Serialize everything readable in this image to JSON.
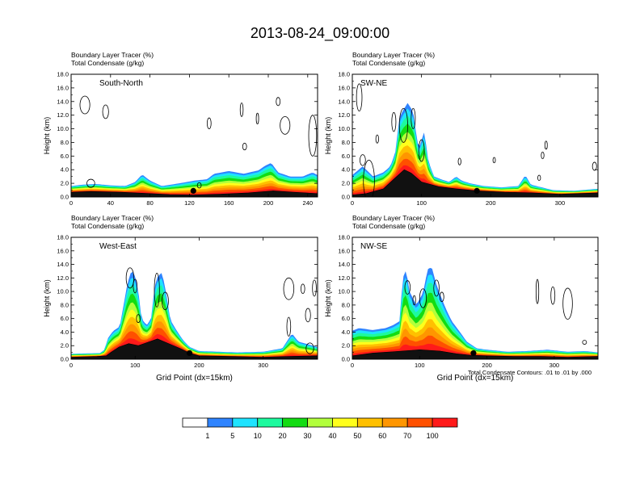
{
  "title": "2013-08-24_09:00:00",
  "footnote": "Total Condensate Contours: .01 to .01 by .000",
  "chart_data": [
    {
      "type": "heatmap",
      "subtitle_line1": "Boundary Layer Tracer   (%)",
      "subtitle_line2": "Total Condensate   (g/kg)",
      "panel_label": "South-North",
      "xlabel": "",
      "ylabel": "Height (km)",
      "xlim": [
        0,
        250
      ],
      "ylim": [
        0,
        18
      ],
      "x_ticks": [
        "0",
        "40",
        "80",
        "120",
        "160",
        "200",
        "240"
      ],
      "y_ticks": [
        "0.0",
        "2.0",
        "4.0",
        "6.0",
        "8.0",
        "10.0",
        "12.0",
        "14.0",
        "16.0",
        "18.0"
      ],
      "terrain": [
        [
          0,
          0.7
        ],
        [
          20,
          0.8
        ],
        [
          50,
          0.7
        ],
        [
          80,
          0.5
        ],
        [
          100,
          0.35
        ],
        [
          124,
          0.3
        ],
        [
          150,
          0.4
        ],
        [
          180,
          0.6
        ],
        [
          205,
          0.9
        ],
        [
          225,
          0.7
        ],
        [
          250,
          0.5
        ]
      ],
      "plume_top": [
        [
          0,
          1.6
        ],
        [
          12,
          1.8
        ],
        [
          25,
          1.9
        ],
        [
          40,
          1.7
        ],
        [
          55,
          1.6
        ],
        [
          65,
          2.2
        ],
        [
          72,
          3.3
        ],
        [
          80,
          2.4
        ],
        [
          92,
          1.6
        ],
        [
          110,
          2.0
        ],
        [
          125,
          2.4
        ],
        [
          138,
          2.6
        ],
        [
          145,
          3.4
        ],
        [
          160,
          3.8
        ],
        [
          175,
          3.4
        ],
        [
          190,
          3.9
        ],
        [
          197,
          4.6
        ],
        [
          203,
          5.0
        ],
        [
          210,
          3.6
        ],
        [
          222,
          3.0
        ],
        [
          235,
          3.0
        ],
        [
          245,
          3.6
        ],
        [
          250,
          3.2
        ]
      ],
      "condensate_blobs": [
        [
          14,
          13.5,
          5,
          1.3
        ],
        [
          35,
          12.5,
          3,
          1.0
        ],
        [
          140,
          10.8,
          2,
          0.8
        ],
        [
          173,
          12.8,
          1.5,
          1.0
        ],
        [
          189,
          11.5,
          1.2,
          0.8
        ],
        [
          176,
          7.4,
          2,
          0.5
        ],
        [
          210,
          14.0,
          2,
          0.6
        ],
        [
          217,
          10.5,
          5,
          1.3
        ],
        [
          245,
          9.0,
          4,
          3.0
        ],
        [
          20,
          2.0,
          4,
          0.6
        ],
        [
          130,
          1.7,
          2,
          0.4
        ]
      ],
      "site_marker": {
        "x": 124,
        "y": 0.9
      }
    },
    {
      "type": "heatmap",
      "subtitle_line1": "Boundary Layer Tracer   (%)",
      "subtitle_line2": "Total Condensate   (g/kg)",
      "panel_label": "SW-NE",
      "xlabel": "",
      "ylabel": "Height (km)",
      "xlim": [
        0,
        355
      ],
      "ylim": [
        0,
        18
      ],
      "x_ticks": [
        "0",
        "100",
        "200",
        "300"
      ],
      "y_ticks": [
        "0.0",
        "2.0",
        "4.0",
        "6.0",
        "8.0",
        "10.0",
        "12.0",
        "14.0",
        "16.0",
        "18.0"
      ],
      "terrain": [
        [
          0,
          0.3
        ],
        [
          20,
          0.5
        ],
        [
          45,
          1.2
        ],
        [
          62,
          2.8
        ],
        [
          75,
          4.0
        ],
        [
          85,
          3.5
        ],
        [
          100,
          2.2
        ],
        [
          125,
          1.5
        ],
        [
          150,
          1.2
        ],
        [
          180,
          0.9
        ],
        [
          220,
          0.7
        ],
        [
          260,
          0.6
        ],
        [
          300,
          0.4
        ],
        [
          355,
          0.6
        ]
      ],
      "plume_top": [
        [
          0,
          3.2
        ],
        [
          15,
          4.5
        ],
        [
          30,
          3.0
        ],
        [
          45,
          3.6
        ],
        [
          55,
          4.5
        ],
        [
          62,
          6.5
        ],
        [
          68,
          11.5
        ],
        [
          72,
          12.5
        ],
        [
          80,
          13.8
        ],
        [
          88,
          12.5
        ],
        [
          92,
          9.5
        ],
        [
          96,
          7.0
        ],
        [
          104,
          9.6
        ],
        [
          110,
          5.2
        ],
        [
          118,
          3.0
        ],
        [
          128,
          2.6
        ],
        [
          140,
          2.2
        ],
        [
          150,
          3.0
        ],
        [
          158,
          2.4
        ],
        [
          170,
          2.0
        ],
        [
          190,
          1.6
        ],
        [
          215,
          1.4
        ],
        [
          240,
          1.6
        ],
        [
          250,
          3.2
        ],
        [
          258,
          1.8
        ],
        [
          290,
          1.0
        ],
        [
          320,
          0.9
        ],
        [
          355,
          1.2
        ]
      ],
      "condensate_blobs": [
        [
          10,
          14.6,
          4,
          2.0
        ],
        [
          24,
          2.4,
          8,
          3.0
        ],
        [
          15,
          5.4,
          4,
          0.8
        ],
        [
          60,
          11.0,
          3,
          1.4
        ],
        [
          74,
          10.5,
          6,
          2.5
        ],
        [
          88,
          11.5,
          3,
          1.5
        ],
        [
          100,
          6.8,
          4,
          1.6
        ],
        [
          36,
          8.5,
          2,
          0.6
        ],
        [
          280,
          7.6,
          1.5,
          0.6
        ],
        [
          275,
          6.1,
          2,
          0.5
        ],
        [
          205,
          5.4,
          1,
          0.4
        ],
        [
          155,
          5.2,
          2,
          0.5
        ],
        [
          270,
          2.8,
          2,
          0.4
        ],
        [
          350,
          4.5,
          3,
          0.6
        ]
      ],
      "site_marker": {
        "x": 180,
        "y": 0.9
      }
    },
    {
      "type": "heatmap",
      "subtitle_line1": "Boundary Layer Tracer   (%)",
      "subtitle_line2": "Total Condensate   (g/kg)",
      "panel_label": "West-East",
      "xlabel": "Grid Point (dx=15km)",
      "ylabel": "Height (km)",
      "xlim": [
        0,
        385
      ],
      "ylim": [
        0,
        18
      ],
      "x_ticks": [
        "0",
        "100",
        "200",
        "300"
      ],
      "y_ticks": [
        "0.0",
        "2.0",
        "4.0",
        "6.0",
        "8.0",
        "10.0",
        "12.0",
        "14.0",
        "16.0",
        "18.0"
      ],
      "terrain": [
        [
          0,
          0.3
        ],
        [
          40,
          0.4
        ],
        [
          55,
          0.5
        ],
        [
          62,
          1.0
        ],
        [
          75,
          1.8
        ],
        [
          90,
          2.3
        ],
        [
          105,
          2.0
        ],
        [
          120,
          2.5
        ],
        [
          135,
          3.0
        ],
        [
          150,
          2.4
        ],
        [
          170,
          1.6
        ],
        [
          185,
          0.9
        ],
        [
          200,
          0.5
        ],
        [
          250,
          0.4
        ],
        [
          300,
          0.3
        ],
        [
          340,
          0.4
        ],
        [
          385,
          0.5
        ]
      ],
      "plume_top": [
        [
          0,
          0.8
        ],
        [
          45,
          0.9
        ],
        [
          52,
          1.4
        ],
        [
          58,
          3.2
        ],
        [
          66,
          4.2
        ],
        [
          76,
          4.8
        ],
        [
          88,
          11.2
        ],
        [
          94,
          13.0
        ],
        [
          98,
          12.8
        ],
        [
          104,
          10.8
        ],
        [
          110,
          6.0
        ],
        [
          118,
          5.0
        ],
        [
          125,
          6.0
        ],
        [
          130,
          10.5
        ],
        [
          135,
          12.2
        ],
        [
          142,
          12.8
        ],
        [
          148,
          10.0
        ],
        [
          155,
          5.8
        ],
        [
          165,
          4.2
        ],
        [
          175,
          2.8
        ],
        [
          185,
          1.8
        ],
        [
          200,
          1.2
        ],
        [
          230,
          1.1
        ],
        [
          260,
          1.0
        ],
        [
          300,
          1.1
        ],
        [
          330,
          1.6
        ],
        [
          345,
          3.8
        ],
        [
          355,
          2.6
        ],
        [
          370,
          2.2
        ],
        [
          385,
          1.8
        ]
      ],
      "condensate_blobs": [
        [
          92,
          12.0,
          6,
          1.5
        ],
        [
          100,
          10.8,
          3,
          1.0
        ],
        [
          134,
          10.2,
          4,
          2.5
        ],
        [
          147,
          8.6,
          5,
          1.3
        ],
        [
          105,
          6.0,
          3,
          0.6
        ],
        [
          340,
          10.4,
          8,
          1.6
        ],
        [
          362,
          10.4,
          3,
          0.7
        ],
        [
          340,
          4.8,
          3,
          1.4
        ],
        [
          370,
          6.5,
          4,
          1.0
        ],
        [
          380,
          10.5,
          3,
          1.2
        ],
        [
          373,
          1.6,
          6,
          0.8
        ]
      ],
      "site_marker": {
        "x": 185,
        "y": 0.9
      }
    },
    {
      "type": "heatmap",
      "subtitle_line1": "Boundary Layer Tracer   (%)",
      "subtitle_line2": "Total Condensate   (g/kg)",
      "panel_label": "NW-SE",
      "xlabel": "Grid Point (dx=15km)",
      "ylabel": "Height (km)",
      "xlim": [
        0,
        365
      ],
      "ylim": [
        0,
        18
      ],
      "x_ticks": [
        "0",
        "100",
        "200",
        "300"
      ],
      "y_ticks": [
        "0.0",
        "2.0",
        "4.0",
        "6.0",
        "8.0",
        "10.0",
        "12.0",
        "14.0",
        "16.0",
        "18.0"
      ],
      "terrain": [
        [
          0,
          0.5
        ],
        [
          30,
          0.9
        ],
        [
          60,
          1.1
        ],
        [
          100,
          1.4
        ],
        [
          130,
          1.2
        ],
        [
          155,
          0.8
        ],
        [
          175,
          0.6
        ],
        [
          200,
          0.5
        ],
        [
          240,
          0.4
        ],
        [
          280,
          0.4
        ],
        [
          320,
          0.3
        ],
        [
          365,
          0.4
        ]
      ],
      "plume_top": [
        [
          0,
          4.2
        ],
        [
          10,
          4.6
        ],
        [
          30,
          4.3
        ],
        [
          50,
          4.6
        ],
        [
          60,
          5.0
        ],
        [
          70,
          5.6
        ],
        [
          75,
          12.0
        ],
        [
          80,
          13.2
        ],
        [
          85,
          10.0
        ],
        [
          95,
          8.0
        ],
        [
          105,
          9.8
        ],
        [
          112,
          13.3
        ],
        [
          118,
          13.6
        ],
        [
          125,
          11.0
        ],
        [
          135,
          8.4
        ],
        [
          142,
          6.8
        ],
        [
          148,
          5.6
        ],
        [
          160,
          4.0
        ],
        [
          170,
          2.6
        ],
        [
          185,
          1.6
        ],
        [
          200,
          1.4
        ],
        [
          230,
          1.1
        ],
        [
          260,
          1.2
        ],
        [
          290,
          1.4
        ],
        [
          320,
          1.1
        ],
        [
          345,
          1.2
        ],
        [
          365,
          1.0
        ]
      ],
      "condensate_blobs": [
        [
          82,
          10.6,
          4,
          1.0
        ],
        [
          105,
          9.0,
          5,
          1.4
        ],
        [
          125,
          10.5,
          4,
          1.2
        ],
        [
          92,
          8.7,
          2,
          0.7
        ],
        [
          133,
          9.2,
          3,
          0.7
        ],
        [
          275,
          10.0,
          2,
          1.8
        ],
        [
          298,
          9.4,
          3,
          1.3
        ],
        [
          320,
          8.2,
          7,
          2.3
        ],
        [
          345,
          2.5,
          3,
          0.3
        ]
      ],
      "site_marker": {
        "x": 180,
        "y": 0.9
      }
    }
  ],
  "colorbar": {
    "levels": [
      "1",
      "5",
      "10",
      "20",
      "30",
      "40",
      "50",
      "60",
      "70",
      "100"
    ],
    "colors": [
      "#ffffff",
      "#2f84ff",
      "#1ee3ff",
      "#1dfa9e",
      "#13dc13",
      "#b2ff3c",
      "#ffff1c",
      "#ffc000",
      "#ff9600",
      "#ff5000",
      "#ff1a1a"
    ]
  }
}
